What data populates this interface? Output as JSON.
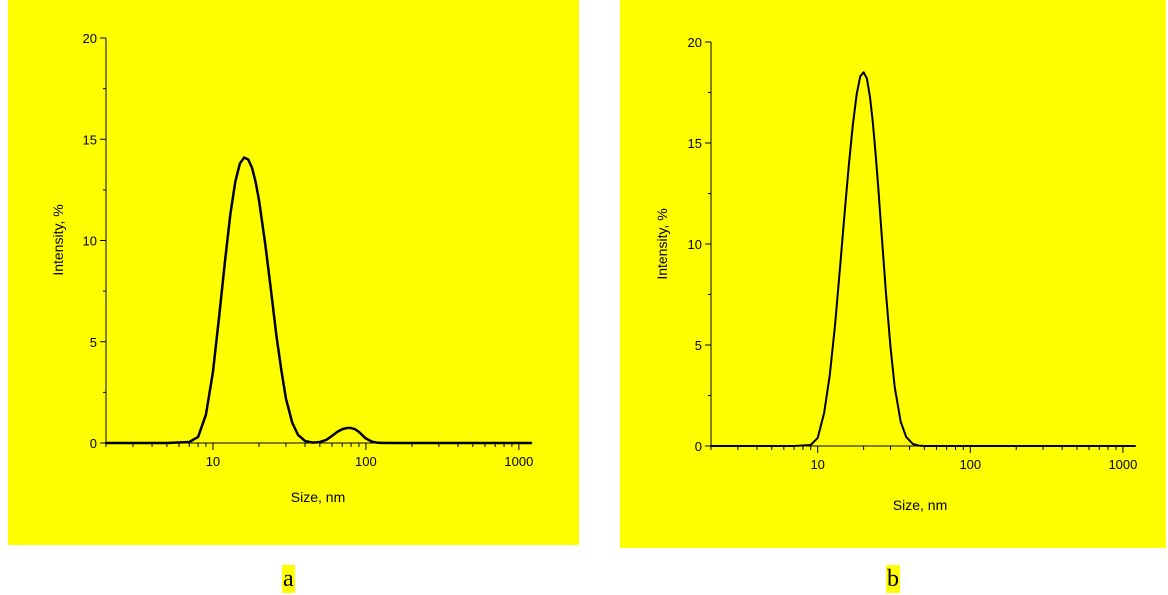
{
  "colors": {
    "plot_background": "#ffff00",
    "page_background": "#ffffff",
    "line": "#000000"
  },
  "chart_data": [
    {
      "type": "line",
      "panel_label": "a",
      "xlabel": "Size, nm",
      "ylabel": "Intensity, %",
      "xscale": "log",
      "xlim": [
        2,
        1200
      ],
      "ylim": [
        0,
        20
      ],
      "xticks": [
        10,
        100,
        1000
      ],
      "xtick_labels": [
        "10",
        "100",
        "1000"
      ],
      "yticks": [
        0,
        5,
        10,
        15,
        20
      ],
      "ytick_labels": [
        "0",
        "5",
        "10",
        "15",
        "20"
      ],
      "grid": false,
      "legend": "none",
      "series": [
        {
          "x": [
            2,
            5,
            7,
            8,
            9,
            10,
            11,
            12,
            13,
            14,
            15,
            16,
            17,
            18,
            19,
            20,
            22,
            24,
            26,
            28,
            30,
            33,
            36,
            40,
            45,
            50,
            55,
            60,
            65,
            70,
            75,
            80,
            85,
            90,
            95,
            100,
            110,
            120,
            150,
            300,
            1200
          ],
          "y": [
            0,
            0,
            0.05,
            0.3,
            1.4,
            3.5,
            6.3,
            9.0,
            11.3,
            12.9,
            13.8,
            14.1,
            14.0,
            13.6,
            12.9,
            12.0,
            9.8,
            7.5,
            5.3,
            3.6,
            2.2,
            1.0,
            0.4,
            0.1,
            0.02,
            0.05,
            0.15,
            0.35,
            0.55,
            0.68,
            0.74,
            0.74,
            0.68,
            0.55,
            0.38,
            0.22,
            0.06,
            0.01,
            0,
            0,
            0
          ]
        }
      ]
    },
    {
      "type": "line",
      "panel_label": "b",
      "xlabel": "Size, nm",
      "ylabel": "Intensity, %",
      "xscale": "log",
      "xlim": [
        2,
        1200
      ],
      "ylim": [
        0,
        20
      ],
      "xticks": [
        10,
        100,
        1000
      ],
      "xtick_labels": [
        "10",
        "100",
        "1000"
      ],
      "yticks": [
        0,
        5,
        10,
        15,
        20
      ],
      "ytick_labels": [
        "0",
        "5",
        "10",
        "15",
        "20"
      ],
      "grid": false,
      "legend": "none",
      "series": [
        {
          "x": [
            2,
            7,
            9,
            10,
            11,
            12,
            13,
            14,
            15,
            16,
            17,
            18,
            19,
            20,
            21,
            22,
            23,
            24,
            25,
            26,
            28,
            30,
            32,
            35,
            38,
            42,
            46,
            50,
            60,
            100,
            1200
          ],
          "y": [
            0,
            0,
            0.05,
            0.4,
            1.6,
            3.5,
            6.0,
            8.8,
            11.5,
            13.9,
            15.9,
            17.4,
            18.3,
            18.5,
            18.2,
            17.3,
            16.0,
            14.4,
            12.7,
            10.9,
            7.6,
            4.9,
            2.9,
            1.2,
            0.45,
            0.1,
            0.02,
            0,
            0,
            0,
            0
          ]
        }
      ]
    }
  ]
}
